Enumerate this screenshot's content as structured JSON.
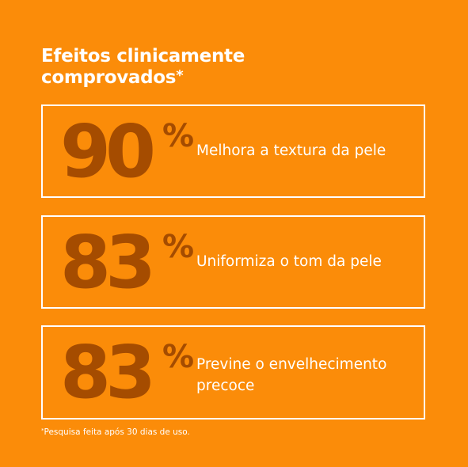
{
  "heading": {
    "line1": "Efeitos clinicamente",
    "line2": "comprovados",
    "asterisk": "*"
  },
  "stats": [
    {
      "value": "90",
      "percent": "%",
      "description_line1": "Melhora a textura da pele",
      "description_line2": ""
    },
    {
      "value": "83",
      "percent": "%",
      "description_line1": "Uniformiza o tom da pele",
      "description_line2": ""
    },
    {
      "value": "83",
      "percent": "%",
      "description_line1": "Previne o envelhecimento",
      "description_line2": "precoce"
    }
  ],
  "footnote": {
    "asterisk": "*",
    "text": "Pesquisa feita após 30 dias de uso."
  },
  "colors": {
    "background": "#fb8c09",
    "stat_text": "#a54c00",
    "text": "#ffffff",
    "border": "#ffffff"
  }
}
